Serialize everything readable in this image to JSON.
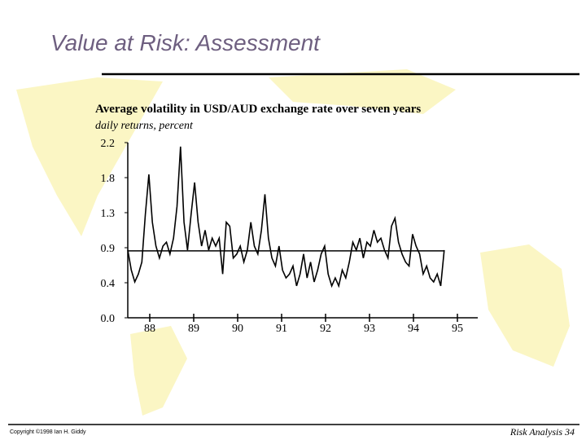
{
  "slide": {
    "title": "Value at Risk: Assessment",
    "footer_left": "Copyright ©1998 Ian H. Giddy",
    "footer_right": "Risk Analysis 34"
  },
  "chart_data": {
    "type": "line",
    "title": "Average volatility in USD/AUD exchange rate over seven years",
    "subtitle": "daily returns, percent",
    "x": [
      1988,
      1988.08,
      1988.16,
      1988.24,
      1988.32,
      1988.4,
      1988.48,
      1988.56,
      1988.64,
      1988.72,
      1988.8,
      1988.88,
      1988.96,
      1989.04,
      1989.12,
      1989.2,
      1989.28,
      1989.36,
      1989.44,
      1989.52,
      1989.6,
      1989.68,
      1989.76,
      1989.84,
      1989.92,
      1990,
      1990.08,
      1990.16,
      1990.24,
      1990.32,
      1990.4,
      1990.48,
      1990.56,
      1990.64,
      1990.72,
      1990.8,
      1990.88,
      1990.96,
      1991.04,
      1991.12,
      1991.2,
      1991.28,
      1991.36,
      1991.44,
      1991.52,
      1991.6,
      1991.68,
      1991.76,
      1991.84,
      1991.92,
      1992,
      1992.08,
      1992.16,
      1992.24,
      1992.32,
      1992.4,
      1992.48,
      1992.56,
      1992.64,
      1992.72,
      1992.8,
      1992.88,
      1992.96,
      1993.04,
      1993.12,
      1993.2,
      1993.28,
      1993.36,
      1993.44,
      1993.52,
      1993.6,
      1993.68,
      1993.76,
      1993.84,
      1993.92,
      1994,
      1994.08,
      1994.16,
      1994.24,
      1994.32,
      1994.4,
      1994.48,
      1994.56,
      1994.64,
      1994.72,
      1994.8,
      1994.88,
      1994.96,
      1995.04,
      1995.12,
      1995.2
    ],
    "series": [
      {
        "color": "#000000",
        "values": [
          0.85,
          0.6,
          0.45,
          0.55,
          0.7,
          1.3,
          1.8,
          1.2,
          0.9,
          0.75,
          0.9,
          0.95,
          0.8,
          1.0,
          1.4,
          2.15,
          1.2,
          0.85,
          1.3,
          1.7,
          1.2,
          0.9,
          1.1,
          0.85,
          1.0,
          0.9,
          1.0,
          0.55,
          1.2,
          1.15,
          0.75,
          0.8,
          0.9,
          0.7,
          0.85,
          1.2,
          0.9,
          0.8,
          1.1,
          1.55,
          1.0,
          0.75,
          0.65,
          0.9,
          0.6,
          0.5,
          0.55,
          0.65,
          0.4,
          0.55,
          0.8,
          0.5,
          0.7,
          0.45,
          0.6,
          0.8,
          0.9,
          0.55,
          0.4,
          0.5,
          0.4,
          0.6,
          0.5,
          0.7,
          0.95,
          0.85,
          1.0,
          0.75,
          0.95,
          0.9,
          1.1,
          0.95,
          1.0,
          0.85,
          0.75,
          1.15,
          1.25,
          0.95,
          0.8,
          0.7,
          0.65,
          1.05,
          0.9,
          0.8,
          0.55,
          0.65,
          0.5,
          0.45,
          0.55,
          0.4,
          0.85
        ]
      }
    ],
    "reference_line": 0.84,
    "xlim": [
      1988,
      1996
    ],
    "xticks": [
      {
        "value": 1988.5,
        "label": "88"
      },
      {
        "value": 1989.5,
        "label": "89"
      },
      {
        "value": 1990.5,
        "label": "90"
      },
      {
        "value": 1991.5,
        "label": "91"
      },
      {
        "value": 1992.5,
        "label": "92"
      },
      {
        "value": 1993.5,
        "label": "93"
      },
      {
        "value": 1994.5,
        "label": "94"
      },
      {
        "value": 1995.5,
        "label": "95"
      }
    ],
    "ylim": [
      0,
      2.2
    ],
    "yticks": [
      {
        "value": 0,
        "label": "0.0"
      },
      {
        "value": 0.44,
        "label": "0.4"
      },
      {
        "value": 0.88,
        "label": "0.9"
      },
      {
        "value": 1.32,
        "label": "1.3"
      },
      {
        "value": 1.76,
        "label": "1.8"
      },
      2.2
    ]
  }
}
